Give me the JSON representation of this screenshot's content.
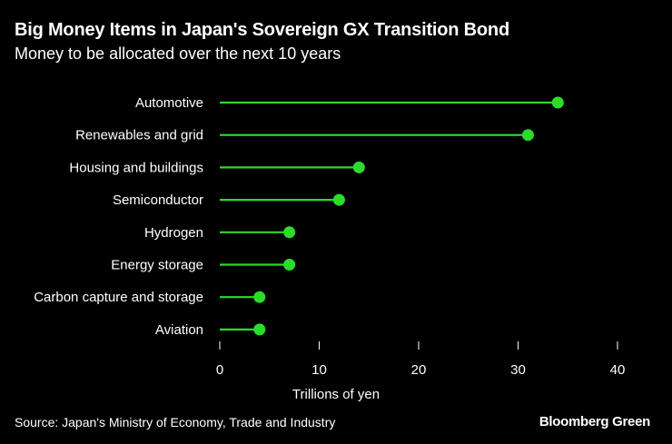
{
  "chart_data": {
    "type": "lollipop",
    "title": "Big Money Items in Japan's Sovereign GX Transition Bond",
    "subtitle": "Money to be allocated over the next 10 years",
    "categories": [
      "Automotive",
      "Renewables and grid",
      "Housing and buildings",
      "Semiconductor",
      "Hydrogen",
      "Energy storage",
      "Carbon capture and storage",
      "Aviation"
    ],
    "values": [
      34,
      31,
      14,
      12,
      7,
      7,
      4,
      4
    ],
    "xlabel": "Trillions of yen",
    "xlim": [
      0,
      40
    ],
    "xticks": [
      0,
      10,
      20,
      30,
      40
    ],
    "grid": false,
    "legend": "none"
  },
  "colors": {
    "background": "#000000",
    "series": "#2bdc2b",
    "text": "#ffffff"
  },
  "footer": {
    "source": "Source: Japan's Ministry of Economy, Trade and Industry",
    "brand": "Bloomberg Green"
  }
}
